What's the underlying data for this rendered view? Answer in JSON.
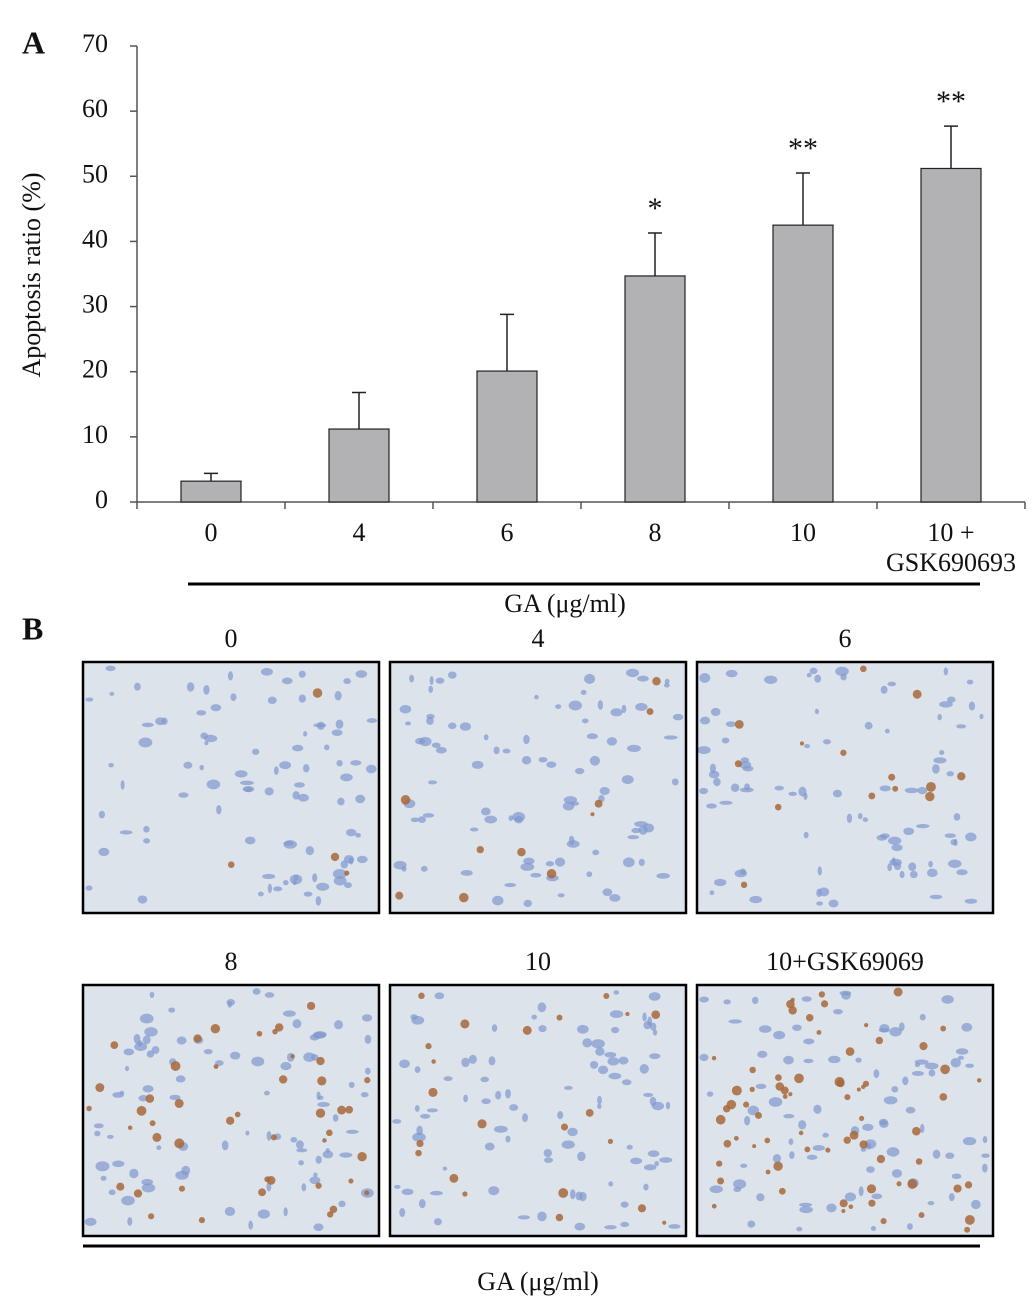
{
  "chart_data": {
    "type": "bar",
    "panel_label": "A",
    "ylabel": "Apoptosis ratio (%)",
    "xlabel": "GA (μg/ml)",
    "categories": [
      "0",
      "4",
      "6",
      "8",
      "10",
      "10 +\nGSK690693"
    ],
    "values": [
      3.2,
      11.2,
      20.1,
      34.7,
      42.5,
      51.2
    ],
    "errors": [
      1.2,
      5.6,
      8.7,
      6.6,
      8.0,
      6.5
    ],
    "annotations": [
      {
        "category": "8",
        "text": "*"
      },
      {
        "category": "10",
        "text": "**"
      },
      {
        "category": "10 +\nGSK690693",
        "text": "**"
      }
    ],
    "color": "#b2b2b4",
    "ylim": [
      0,
      70
    ],
    "yticks": [
      0,
      10,
      20,
      30,
      40,
      50,
      60,
      70
    ],
    "grid": false
  },
  "panel_b": {
    "panel_label": "B",
    "images": [
      {
        "title": "0"
      },
      {
        "title": "4"
      },
      {
        "title": "6"
      },
      {
        "title": "8"
      },
      {
        "title": "10"
      },
      {
        "title": "10+GSK69069"
      }
    ],
    "xlabel": "GA (μg/ml)"
  }
}
